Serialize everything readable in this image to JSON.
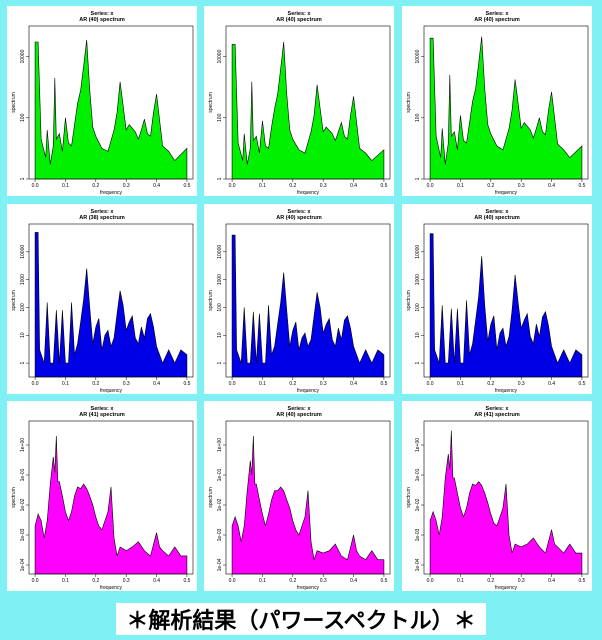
{
  "caption": "＊解析結果（パワースペクトル）＊",
  "colors": {
    "background": "#7ff0f4",
    "green": "#00f000",
    "blue": "#0000e6",
    "magenta": "#ff00ff"
  },
  "chart_data": [
    {
      "type": "area",
      "title": "Series: x",
      "subtitle": "AR (40) spectrum",
      "xlabel": "frequency",
      "ylabel": "spectrum",
      "y_scale": "log",
      "fill": "#00f000",
      "xlim": [
        0,
        0.5
      ],
      "yticks": [
        "1",
        "100",
        "10000"
      ],
      "ylim_log10": [
        0,
        5
      ],
      "x": [
        0,
        0.01,
        0.02,
        0.035,
        0.04,
        0.05,
        0.06,
        0.065,
        0.07,
        0.08,
        0.09,
        0.1,
        0.11,
        0.12,
        0.13,
        0.14,
        0.15,
        0.16,
        0.17,
        0.18,
        0.19,
        0.2,
        0.22,
        0.24,
        0.26,
        0.27,
        0.28,
        0.29,
        0.3,
        0.31,
        0.33,
        0.34,
        0.35,
        0.36,
        0.37,
        0.38,
        0.39,
        0.4,
        0.42,
        0.44,
        0.46,
        0.5
      ],
      "values": [
        30000,
        30000,
        20,
        5,
        40,
        3,
        12,
        2000,
        20,
        30,
        8,
        100,
        15,
        12,
        60,
        300,
        800,
        5000,
        35000,
        800,
        50,
        25,
        10,
        8,
        40,
        150,
        1500,
        250,
        40,
        60,
        35,
        20,
        40,
        90,
        30,
        25,
        150,
        600,
        12,
        8,
        4,
        10
      ]
    },
    {
      "type": "area",
      "title": "Series: x",
      "subtitle": "AR (40) spectrum",
      "xlabel": "frequency",
      "ylabel": "spectrum",
      "y_scale": "log",
      "fill": "#00f000",
      "xlim": [
        0,
        0.5
      ],
      "yticks": [
        "1",
        "100",
        "10000"
      ],
      "ylim_log10": [
        0,
        5
      ],
      "x": [
        0,
        0.01,
        0.02,
        0.035,
        0.04,
        0.05,
        0.06,
        0.065,
        0.07,
        0.08,
        0.09,
        0.1,
        0.11,
        0.12,
        0.13,
        0.14,
        0.15,
        0.16,
        0.17,
        0.18,
        0.19,
        0.2,
        0.22,
        0.24,
        0.26,
        0.27,
        0.28,
        0.29,
        0.3,
        0.31,
        0.33,
        0.34,
        0.35,
        0.36,
        0.37,
        0.38,
        0.39,
        0.4,
        0.42,
        0.44,
        0.46,
        0.5
      ],
      "values": [
        25000,
        25000,
        15,
        4,
        30,
        3,
        10,
        1500,
        18,
        25,
        7,
        80,
        12,
        10,
        50,
        200,
        600,
        4000,
        30000,
        600,
        40,
        20,
        9,
        7,
        35,
        120,
        1200,
        200,
        35,
        50,
        30,
        18,
        35,
        70,
        25,
        20,
        120,
        500,
        10,
        7,
        4,
        9
      ]
    },
    {
      "type": "area",
      "title": "Series: x",
      "subtitle": "AR (40) spectrum",
      "xlabel": "frequency",
      "ylabel": "spectrum",
      "y_scale": "log",
      "fill": "#00f000",
      "xlim": [
        0,
        0.5
      ],
      "yticks": [
        "1",
        "100",
        "10000"
      ],
      "ylim_log10": [
        0,
        5
      ],
      "x": [
        0,
        0.01,
        0.02,
        0.035,
        0.04,
        0.05,
        0.06,
        0.065,
        0.07,
        0.08,
        0.09,
        0.1,
        0.11,
        0.12,
        0.13,
        0.14,
        0.15,
        0.16,
        0.17,
        0.18,
        0.19,
        0.2,
        0.22,
        0.24,
        0.26,
        0.27,
        0.28,
        0.29,
        0.3,
        0.31,
        0.33,
        0.34,
        0.35,
        0.36,
        0.37,
        0.38,
        0.39,
        0.4,
        0.42,
        0.44,
        0.46,
        0.5
      ],
      "values": [
        40000,
        40000,
        25,
        5,
        45,
        3,
        15,
        2500,
        25,
        35,
        9,
        120,
        18,
        15,
        70,
        350,
        900,
        6000,
        45000,
        900,
        60,
        30,
        12,
        9,
        45,
        180,
        1800,
        300,
        45,
        70,
        40,
        22,
        45,
        100,
        35,
        28,
        180,
        700,
        14,
        9,
        5,
        12
      ]
    },
    {
      "type": "area",
      "title": "Series: x",
      "subtitle": "AR (38) spectrum",
      "xlabel": "frequency",
      "ylabel": "spectrum",
      "y_scale": "log",
      "fill": "#0000e6",
      "xlim": [
        0,
        0.5
      ],
      "yticks": [
        "1",
        "10",
        "100",
        "1000",
        "10000"
      ],
      "ylim_log10": [
        -0.5,
        5
      ],
      "x": [
        0,
        0.01,
        0.015,
        0.03,
        0.04,
        0.05,
        0.06,
        0.07,
        0.075,
        0.08,
        0.09,
        0.1,
        0.11,
        0.12,
        0.13,
        0.14,
        0.15,
        0.16,
        0.17,
        0.18,
        0.19,
        0.2,
        0.21,
        0.22,
        0.23,
        0.24,
        0.25,
        0.26,
        0.27,
        0.28,
        0.29,
        0.3,
        0.31,
        0.32,
        0.33,
        0.34,
        0.35,
        0.36,
        0.37,
        0.38,
        0.39,
        0.4,
        0.42,
        0.44,
        0.46,
        0.48,
        0.5
      ],
      "values": [
        50000,
        50000,
        3,
        1,
        150,
        1,
        1,
        80,
        10,
        1,
        80,
        1,
        1,
        150,
        2,
        5,
        30,
        200,
        2500,
        100,
        5,
        20,
        40,
        3,
        10,
        15,
        4,
        8,
        60,
        400,
        120,
        15,
        30,
        50,
        8,
        5,
        20,
        8,
        40,
        60,
        20,
        4,
        1,
        3,
        1,
        3,
        2
      ]
    },
    {
      "type": "area",
      "title": "Series: x",
      "subtitle": "AR (40) spectrum",
      "xlabel": "frequency",
      "ylabel": "spectrum",
      "y_scale": "log",
      "fill": "#0000e6",
      "xlim": [
        0,
        0.5
      ],
      "yticks": [
        "1",
        "10",
        "100",
        "1000",
        "10000"
      ],
      "ylim_log10": [
        -0.5,
        5
      ],
      "x": [
        0,
        0.01,
        0.015,
        0.03,
        0.04,
        0.05,
        0.06,
        0.07,
        0.075,
        0.08,
        0.09,
        0.1,
        0.11,
        0.12,
        0.13,
        0.14,
        0.15,
        0.16,
        0.17,
        0.18,
        0.19,
        0.2,
        0.21,
        0.22,
        0.23,
        0.24,
        0.25,
        0.26,
        0.27,
        0.28,
        0.29,
        0.3,
        0.31,
        0.32,
        0.33,
        0.34,
        0.35,
        0.36,
        0.37,
        0.38,
        0.39,
        0.4,
        0.42,
        0.44,
        0.46,
        0.48,
        0.5
      ],
      "values": [
        40000,
        40000,
        3,
        1,
        100,
        1,
        1,
        70,
        8,
        1,
        60,
        1,
        1,
        120,
        2,
        4,
        25,
        150,
        1800,
        80,
        4,
        15,
        30,
        3,
        8,
        12,
        4,
        7,
        50,
        350,
        100,
        12,
        25,
        40,
        7,
        4,
        18,
        7,
        35,
        50,
        18,
        4,
        1,
        3,
        1,
        3,
        2
      ]
    },
    {
      "type": "area",
      "title": "Series: x",
      "subtitle": "AR (40) spectrum",
      "xlabel": "frequency",
      "ylabel": "spectrum",
      "y_scale": "log",
      "fill": "#0000e6",
      "xlim": [
        0,
        0.5
      ],
      "yticks": [
        "1",
        "10",
        "100",
        "1000",
        "10000"
      ],
      "ylim_log10": [
        -0.5,
        5
      ],
      "x": [
        0,
        0.01,
        0.015,
        0.03,
        0.04,
        0.05,
        0.06,
        0.07,
        0.075,
        0.08,
        0.09,
        0.1,
        0.11,
        0.12,
        0.13,
        0.14,
        0.15,
        0.16,
        0.17,
        0.18,
        0.19,
        0.2,
        0.21,
        0.22,
        0.23,
        0.24,
        0.25,
        0.26,
        0.27,
        0.28,
        0.29,
        0.3,
        0.31,
        0.32,
        0.33,
        0.34,
        0.35,
        0.36,
        0.37,
        0.38,
        0.39,
        0.4,
        0.42,
        0.44,
        0.46,
        0.48,
        0.5
      ],
      "values": [
        45000,
        45000,
        3,
        1,
        120,
        1,
        1,
        90,
        10,
        1,
        90,
        1,
        1,
        180,
        2,
        5,
        35,
        250,
        7000,
        120,
        6,
        25,
        50,
        3,
        12,
        18,
        4,
        9,
        80,
        1500,
        150,
        18,
        35,
        60,
        9,
        5,
        25,
        9,
        45,
        70,
        22,
        4,
        1,
        3,
        1,
        3,
        2
      ]
    },
    {
      "type": "area",
      "title": "Series: x",
      "subtitle": "AR (41) spectrum",
      "xlabel": "frequency",
      "ylabel": "spectrum",
      "y_scale": "log",
      "fill": "#ff00ff",
      "xlim": [
        0,
        0.5
      ],
      "yticks": [
        "1e-04",
        "1e-03",
        "1e-02",
        "1e-01",
        "1e+00"
      ],
      "ylim_log10": [
        -4.3,
        0.8
      ],
      "x": [
        0,
        0.01,
        0.02,
        0.03,
        0.04,
        0.05,
        0.06,
        0.065,
        0.07,
        0.075,
        0.08,
        0.09,
        0.1,
        0.11,
        0.12,
        0.13,
        0.14,
        0.15,
        0.16,
        0.17,
        0.18,
        0.19,
        0.2,
        0.21,
        0.22,
        0.23,
        0.24,
        0.25,
        0.26,
        0.27,
        0.28,
        0.3,
        0.32,
        0.34,
        0.36,
        0.38,
        0.4,
        0.41,
        0.42,
        0.44,
        0.46,
        0.48,
        0.5
      ],
      "values": [
        0.002,
        0.005,
        0.003,
        0.0008,
        0.003,
        0.05,
        0.4,
        0.12,
        2,
        0.06,
        0.06,
        0.02,
        0.006,
        0.003,
        0.006,
        0.02,
        0.04,
        0.035,
        0.05,
        0.035,
        0.02,
        0.01,
        0.004,
        0.002,
        0.0015,
        0.003,
        0.006,
        0.04,
        0.0008,
        0.0002,
        0.0004,
        0.0003,
        0.0004,
        0.0006,
        0.0003,
        0.0002,
        0.0012,
        0.0004,
        0.0003,
        0.0002,
        0.0004,
        0.0002,
        0.0002
      ]
    },
    {
      "type": "area",
      "title": "Series: x",
      "subtitle": "AR (40) spectrum",
      "xlabel": "frequency",
      "ylabel": "spectrum",
      "y_scale": "log",
      "fill": "#ff00ff",
      "xlim": [
        0,
        0.5
      ],
      "yticks": [
        "1e-04",
        "1e-03",
        "1e-02",
        "1e-01",
        "1e+00"
      ],
      "ylim_log10": [
        -4.3,
        0.8
      ],
      "x": [
        0,
        0.01,
        0.02,
        0.03,
        0.04,
        0.05,
        0.06,
        0.065,
        0.07,
        0.075,
        0.08,
        0.09,
        0.1,
        0.11,
        0.12,
        0.13,
        0.14,
        0.15,
        0.16,
        0.17,
        0.18,
        0.19,
        0.2,
        0.21,
        0.22,
        0.23,
        0.24,
        0.25,
        0.26,
        0.27,
        0.28,
        0.3,
        0.32,
        0.34,
        0.36,
        0.38,
        0.4,
        0.41,
        0.42,
        0.44,
        0.46,
        0.48,
        0.5
      ],
      "values": [
        0.002,
        0.004,
        0.002,
        0.0006,
        0.002,
        0.03,
        0.3,
        0.1,
        2,
        0.05,
        0.05,
        0.015,
        0.005,
        0.002,
        0.005,
        0.015,
        0.03,
        0.03,
        0.04,
        0.03,
        0.015,
        0.008,
        0.003,
        0.0015,
        0.001,
        0.002,
        0.004,
        0.03,
        0.0006,
        0.00015,
        0.0003,
        0.00025,
        0.0003,
        0.0005,
        0.0002,
        0.00015,
        0.001,
        0.0003,
        0.0002,
        0.00015,
        0.0003,
        0.00015,
        0.00015
      ]
    },
    {
      "type": "area",
      "title": "Series: x",
      "subtitle": "AR (41) spectrum",
      "xlabel": "frequency",
      "ylabel": "spectrum",
      "y_scale": "log",
      "fill": "#ff00ff",
      "xlim": [
        0,
        0.5
      ],
      "yticks": [
        "1e-04",
        "1e-03",
        "1e-02",
        "1e-01",
        "1e+00"
      ],
      "ylim_log10": [
        -4.3,
        0.8
      ],
      "x": [
        0,
        0.01,
        0.02,
        0.03,
        0.04,
        0.05,
        0.06,
        0.065,
        0.07,
        0.075,
        0.08,
        0.09,
        0.1,
        0.11,
        0.12,
        0.13,
        0.14,
        0.15,
        0.16,
        0.17,
        0.18,
        0.19,
        0.2,
        0.21,
        0.22,
        0.23,
        0.24,
        0.25,
        0.26,
        0.27,
        0.28,
        0.3,
        0.32,
        0.34,
        0.36,
        0.38,
        0.4,
        0.41,
        0.42,
        0.44,
        0.46,
        0.48,
        0.5
      ],
      "values": [
        0.003,
        0.006,
        0.003,
        0.001,
        0.004,
        0.08,
        0.5,
        0.15,
        3,
        0.08,
        0.08,
        0.025,
        0.008,
        0.004,
        0.008,
        0.025,
        0.05,
        0.045,
        0.06,
        0.045,
        0.025,
        0.012,
        0.005,
        0.0025,
        0.002,
        0.004,
        0.008,
        0.05,
        0.001,
        0.00025,
        0.0005,
        0.0004,
        0.0005,
        0.0008,
        0.0004,
        0.00025,
        0.0015,
        0.0005,
        0.0004,
        0.00025,
        0.0005,
        0.00025,
        0.00025
      ]
    }
  ]
}
